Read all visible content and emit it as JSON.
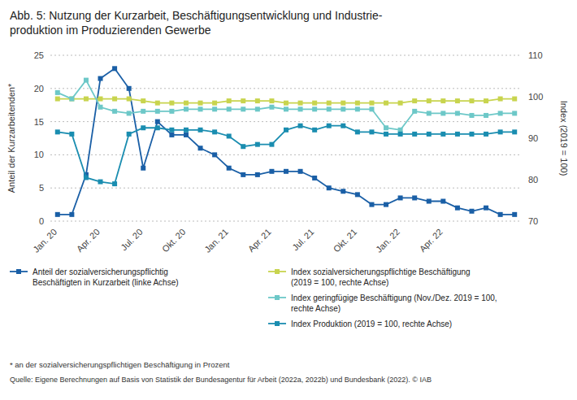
{
  "chart_data": {
    "type": "line",
    "title": "Abb. 5: Nutzung der Kurzarbeit, Beschäftigungsentwicklung und Industrie-\nproduktion im Produzierenden Gewerbe",
    "ylabel": "Anteil der Kurzarbeitenden*",
    "y2label": "Index (2019 = 100)",
    "footnote": "* an der sozialversicherungspflichtigen Beschäftigung in Prozent",
    "source": "Quelle: Eigene Berechnungen auf Basis von Statistik der Bundesagentur für Arbeit (2022a, 2022b) und Bundesbank (2022). © IAB",
    "categories": [
      "Jan. 20",
      null,
      null,
      "Apr. 20",
      null,
      null,
      "Jul. 20",
      null,
      null,
      "Okt. 20",
      null,
      null,
      "Jan. 21",
      null,
      null,
      "Apr. 21",
      null,
      null,
      "Jul. 21",
      null,
      null,
      "Okt. 21",
      null,
      null,
      "Jan. 22",
      null,
      null,
      "Apr. 22",
      null,
      null,
      null,
      null,
      null
    ],
    "ylim": [
      0,
      25
    ],
    "yticks": [
      0,
      5,
      10,
      15,
      20,
      25
    ],
    "y2lim": [
      70,
      110
    ],
    "y2ticks": [
      70,
      80,
      90,
      100,
      110
    ],
    "grid": true,
    "legend": "bottom",
    "marker": "square",
    "line_style": "solid",
    "series": [
      {
        "name": "Anteil der sozialversicherungspflichtig\nBeschäftigten in Kurzarbeit (linke Achse)",
        "color": "#1a5fa6",
        "axis": "y",
        "values": [
          1,
          1,
          7,
          21.5,
          23,
          20,
          8,
          15,
          13,
          13,
          11,
          10,
          8,
          7,
          7,
          7.5,
          7.5,
          7.5,
          6.5,
          5,
          4.5,
          4,
          2.5,
          2.5,
          3.5,
          3.5,
          3,
          3,
          2,
          1.5,
          2,
          1,
          1
        ]
      },
      {
        "name": "Index sozialversicherungspflichtige Beschäftigung\n(2019 = 100, rechte Achse)",
        "color": "#c8d44e",
        "axis": "y2",
        "values": [
          99.5,
          99.5,
          99.5,
          99.5,
          99.5,
          99.5,
          99,
          98.5,
          98.5,
          98.5,
          98.5,
          98.5,
          99,
          99,
          99,
          99,
          98.5,
          98.5,
          98.5,
          98.5,
          98.5,
          98.5,
          98.5,
          98.5,
          98.5,
          99,
          99,
          99,
          99,
          99,
          99,
          99.5,
          99.5
        ]
      },
      {
        "name": "Index geringfügige Beschäftigung (Nov./Dez. 2019 = 100,\nrechte Achse)",
        "color": "#6dc8c8",
        "axis": "y2",
        "values": [
          101,
          99.5,
          104,
          97.5,
          96.5,
          96,
          96.5,
          96.5,
          96.5,
          97,
          97,
          97,
          97,
          97,
          97,
          97.5,
          97,
          97,
          97,
          97,
          97,
          97,
          97,
          92.5,
          92,
          96.5,
          96,
          96,
          96,
          95.5,
          95.5,
          96,
          96
        ]
      },
      {
        "name": "Index Produktion (2019 = 100, rechte Achse)",
        "color": "#1a8db0",
        "axis": "y2",
        "values": [
          91.5,
          91,
          80.5,
          79.5,
          79,
          91,
          92.5,
          92.5,
          92,
          92,
          92,
          91.5,
          90.5,
          88,
          88.5,
          88.5,
          92,
          93,
          92,
          93,
          93,
          91.5,
          91.5,
          91,
          91,
          91,
          91,
          91,
          91,
          91,
          91,
          91.5,
          91.5
        ]
      }
    ]
  }
}
